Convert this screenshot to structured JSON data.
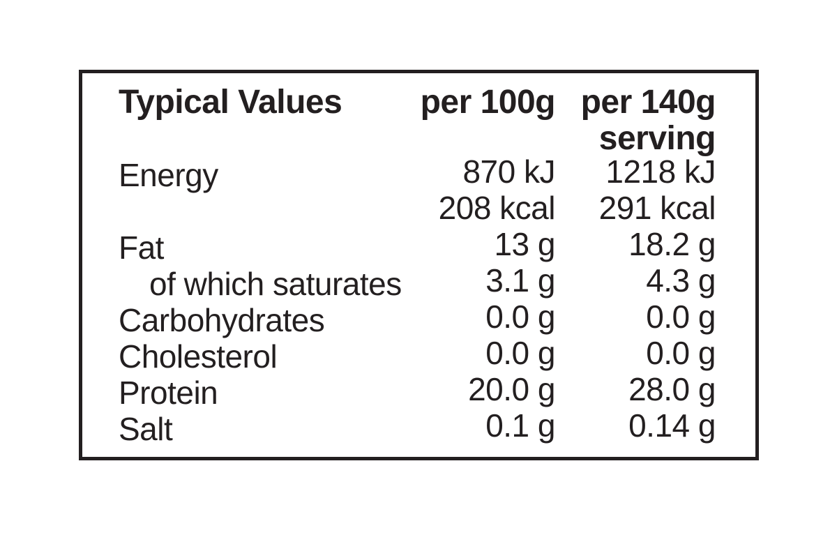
{
  "nutrition_label": {
    "colors": {
      "ink": "#231f20",
      "background": "#ffffff"
    },
    "header": {
      "title": "Typical Values",
      "per_100g": "per 100g",
      "per_140g": "per 140g",
      "serving": "serving"
    },
    "rows": [
      {
        "label": "Energy",
        "per_100g": "870 kJ",
        "per_140g": "1218 kJ"
      },
      {
        "label": "",
        "per_100g": "208 kcal",
        "per_140g": "291 kcal"
      },
      {
        "label": "Fat",
        "per_100g": "13 g",
        "per_140g": "18.2 g"
      },
      {
        "label": "of which saturates",
        "per_100g": "3.1 g",
        "per_140g": "4.3 g"
      },
      {
        "label": "Carbohydrates",
        "per_100g": "0.0 g",
        "per_140g": "0.0 g"
      },
      {
        "label": "Cholesterol",
        "per_100g": "0.0 g",
        "per_140g": "0.0 g"
      },
      {
        "label": "Protein",
        "per_100g": "20.0 g",
        "per_140g": "28.0 g"
      },
      {
        "label": "Salt",
        "per_100g": "0.1 g",
        "per_140g": "0.14 g"
      }
    ]
  }
}
